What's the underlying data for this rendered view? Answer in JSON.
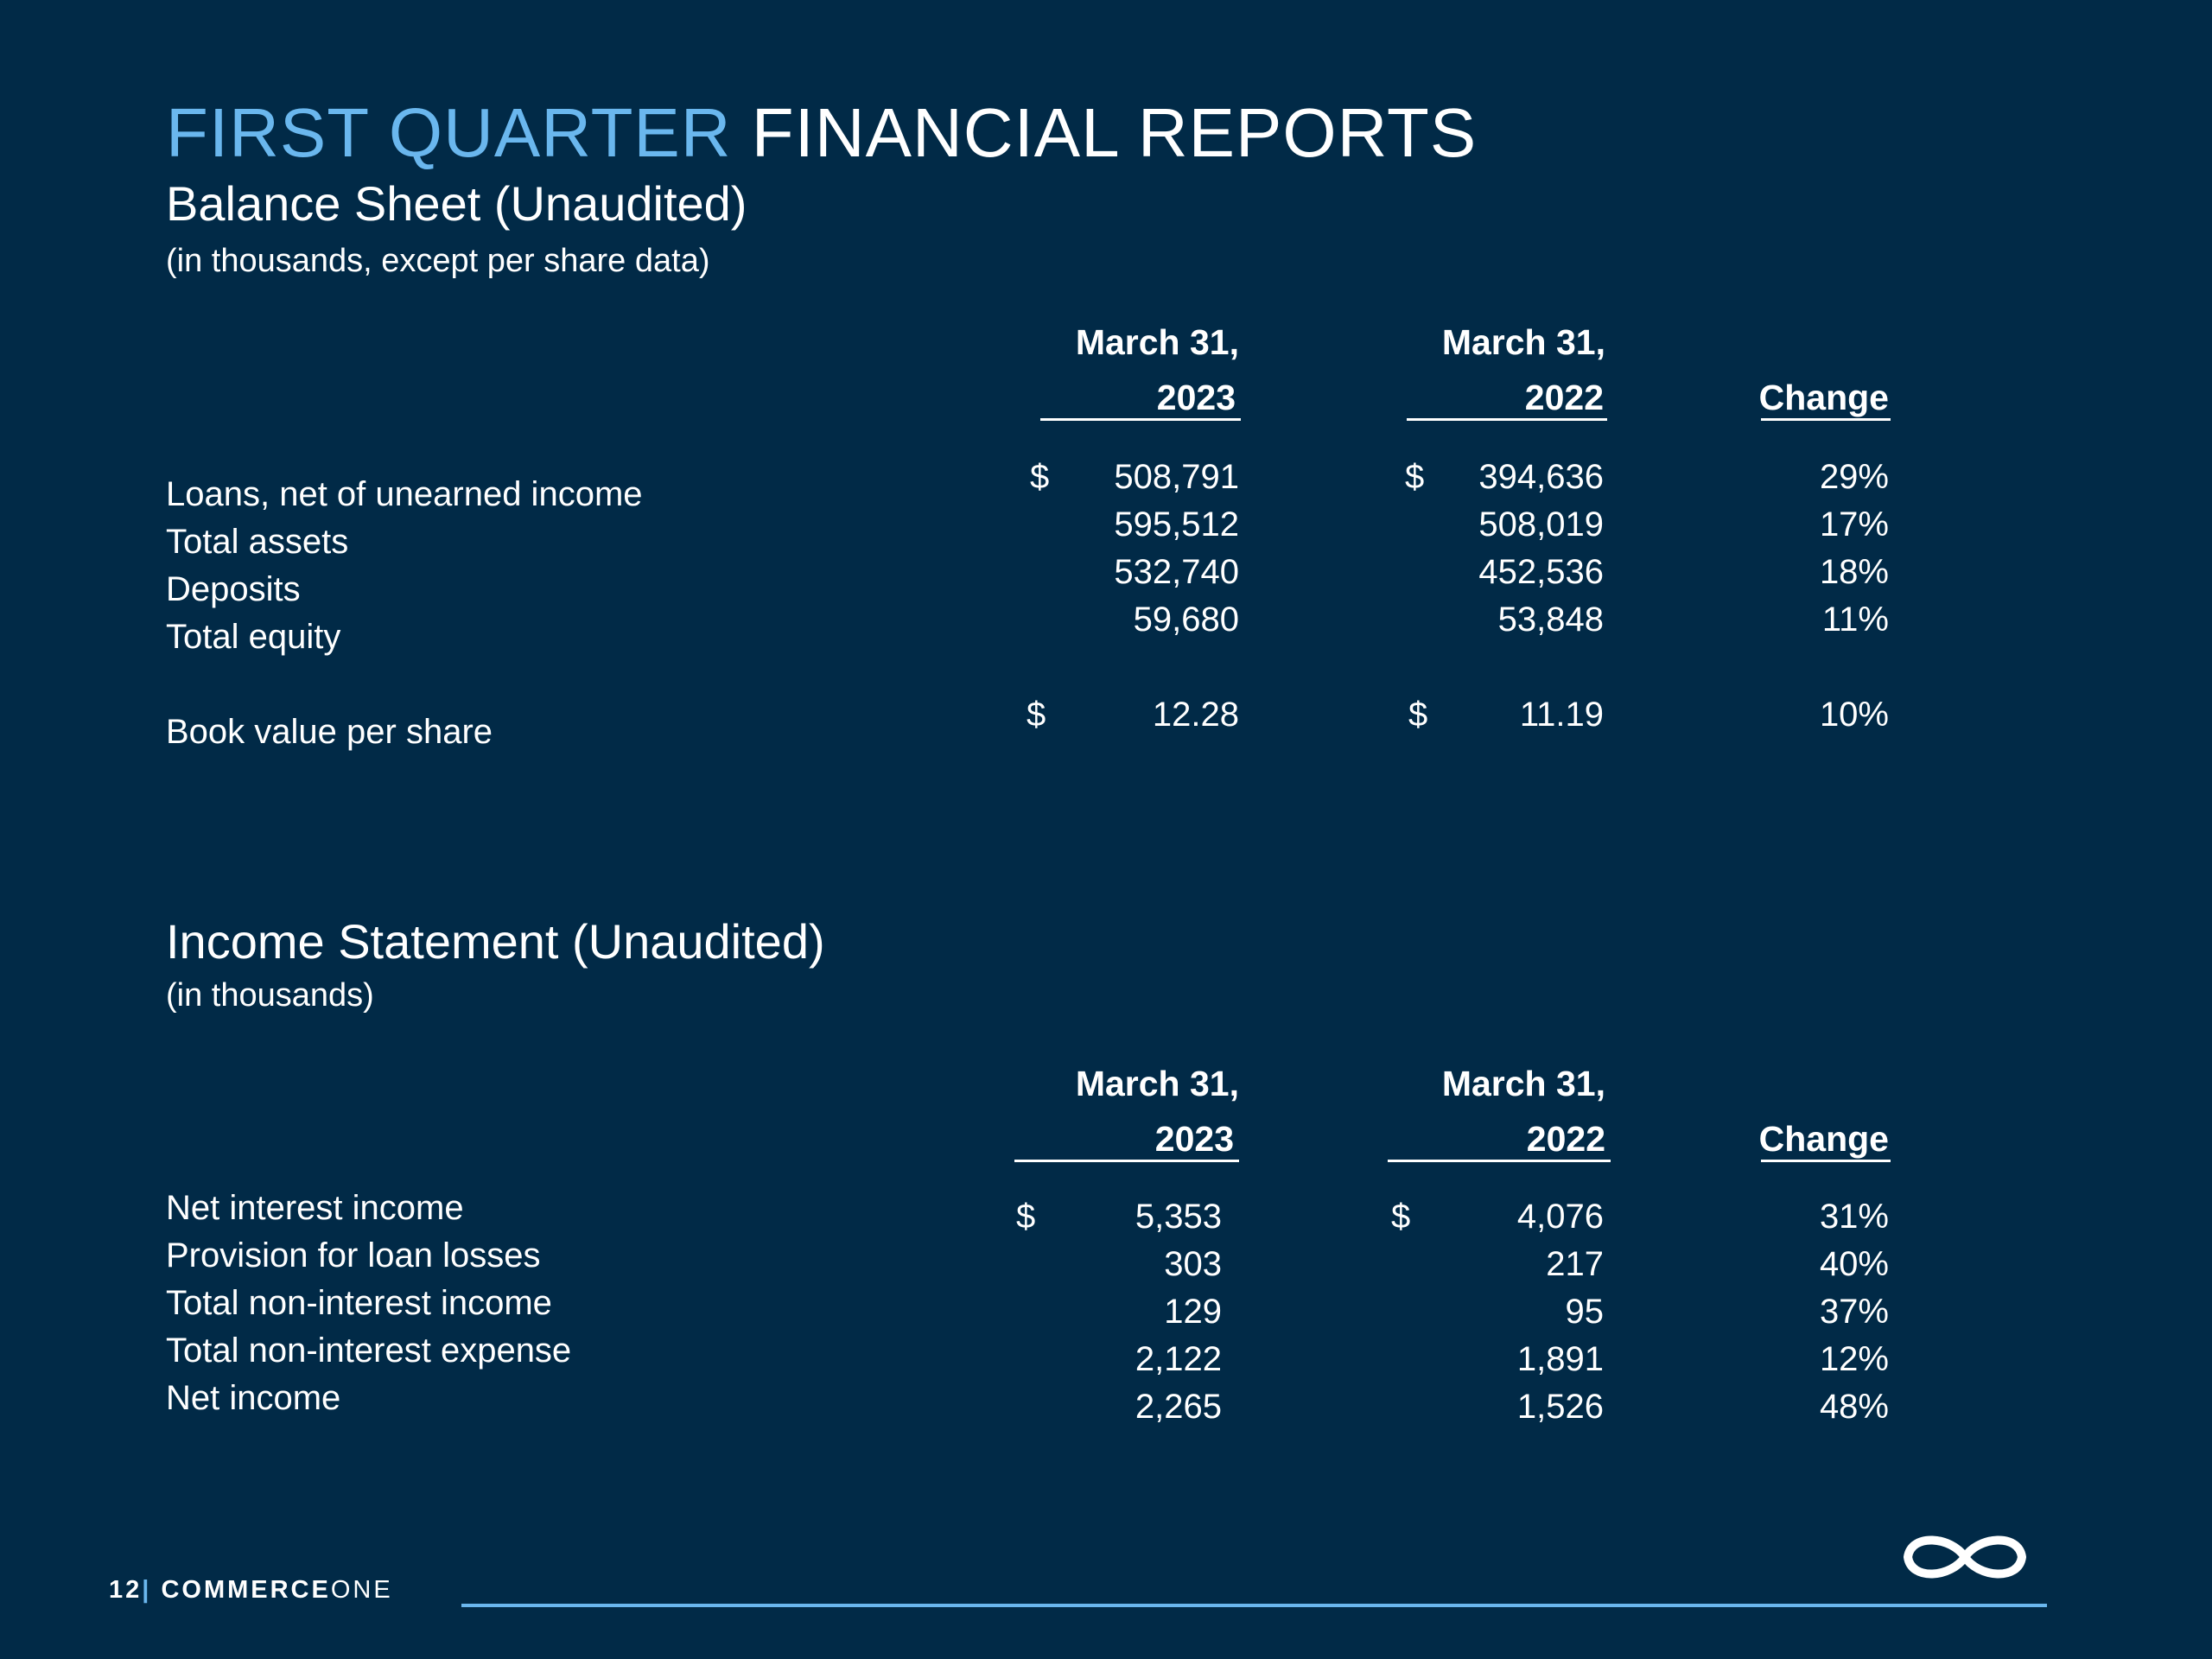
{
  "header": {
    "title_accent": "FIRST QUARTER",
    "title_rest": "FINANCIAL REPORTS"
  },
  "balance_sheet": {
    "title": "Balance Sheet (Unaudited)",
    "subtitle": "(in thousands, except per share data)",
    "col1_top": "March 31,",
    "col1_year": "2023",
    "col2_top": "March 31,",
    "col2_year": "2022",
    "col3": "Change",
    "rows": [
      {
        "label": "Loans, net of unearned income",
        "dollar1": "$",
        "v2023": "508,791",
        "dollar2": "$",
        "v2022": "394,636",
        "change": "29%"
      },
      {
        "label": "Total assets",
        "dollar1": "",
        "v2023": "595,512",
        "dollar2": "",
        "v2022": "508,019",
        "change": "17%"
      },
      {
        "label": "Deposits",
        "dollar1": "",
        "v2023": "532,740",
        "dollar2": "",
        "v2022": "452,536",
        "change": "18%"
      },
      {
        "label": "Total equity",
        "dollar1": "",
        "v2023": "59,680",
        "dollar2": "",
        "v2022": "53,848",
        "change": "11%"
      },
      {
        "label": "Book value per share",
        "dollar1": "$",
        "v2023": "12.28",
        "dollar2": "$",
        "v2022": "11.19",
        "change": "10%"
      }
    ]
  },
  "income_statement": {
    "title": "Income Statement (Unaudited)",
    "subtitle": "(in thousands)",
    "col1_top": "March 31,",
    "col1_year": "2023",
    "col2_top": "March 31,",
    "col2_year": "2022",
    "col3": "Change",
    "rows": [
      {
        "label": "Net interest income",
        "dollar1": "$",
        "v2023": "5,353",
        "dollar2": "$",
        "v2022": "4,076",
        "change": "31%"
      },
      {
        "label": "Provision for loan losses",
        "dollar1": "",
        "v2023": "303",
        "dollar2": "",
        "v2022": "217",
        "change": "40%"
      },
      {
        "label": "Total non-interest income",
        "dollar1": "",
        "v2023": "129",
        "dollar2": "",
        "v2022": "95",
        "change": "37%"
      },
      {
        "label": "Total non-interest expense",
        "dollar1": "",
        "v2023": "2,122",
        "dollar2": "",
        "v2022": "1,891",
        "change": "12%"
      },
      {
        "label": "Net income",
        "dollar1": "",
        "v2023": "2,265",
        "dollar2": "",
        "v2022": "1,526",
        "change": "48%"
      }
    ]
  },
  "footer": {
    "page_number": "12",
    "separator": "|",
    "brand_bold": "COMMERCE",
    "brand_light": "ONE",
    "logo_icon": "infinity-logo-icon"
  },
  "colors": {
    "background": "#012a47",
    "accent": "#6ab7ee",
    "text": "#ffffff"
  }
}
